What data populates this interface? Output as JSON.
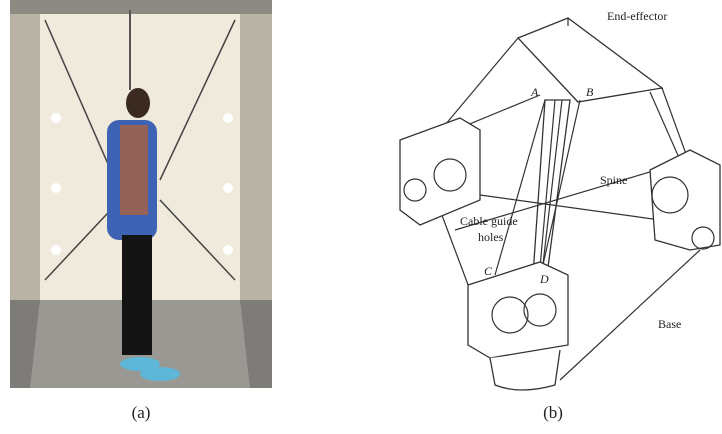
{
  "panels": [
    {
      "caption": "(a)"
    },
    {
      "caption": "(b)",
      "labels": {
        "end_effector": "End-effector",
        "spine": "Spine",
        "cable_guide": [
          "Cable guide",
          "holes"
        ],
        "base": "Base",
        "points": [
          "A",
          "B",
          "C",
          "D"
        ]
      }
    }
  ]
}
